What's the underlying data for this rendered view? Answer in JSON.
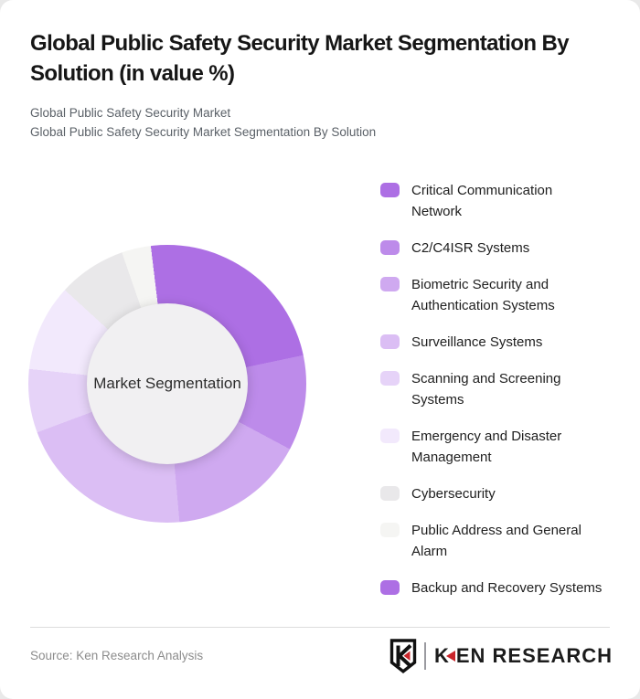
{
  "header": {
    "title": "Global Public Safety Security Market Segmentation By\nSolution (in value %)",
    "subtitle_line1": "Global Public Safety Security Market",
    "subtitle_line2": "Global Public Safety Security Market Segmentation By Solution"
  },
  "chart_data": {
    "type": "pie",
    "variant": "donut",
    "title": "Global Public Safety Security Market Segmentation By Solution (in value %)",
    "center_label": "Market Segmentation",
    "unit": "value %",
    "start_angle_deg": 0,
    "direction": "clockwise",
    "legend_position": "right",
    "hole_color": "#f1f0f2",
    "segments": [
      {
        "label": "Critical Communication\nNetwork",
        "value": 21.7,
        "color": "#ad6fe4"
      },
      {
        "label": "C2/C4ISR Systems",
        "value": 11.1,
        "color": "#bd8bea"
      },
      {
        "label": "Biometric Security and\nAuthentication Systems",
        "value": 15.8,
        "color": "#cfa9f0"
      },
      {
        "label": "Surveillance Systems",
        "value": 20.7,
        "color": "#dbbef4"
      },
      {
        "label": "Scanning and Screening\nSystems",
        "value": 7.4,
        "color": "#e6d3f8"
      },
      {
        "label": "Emergency and Disaster\nManagement",
        "value": 10.1,
        "color": "#f2e9fc"
      },
      {
        "label": "Cybersecurity",
        "value": 7.9,
        "color": "#e9e8ea"
      },
      {
        "label": "Public Address and General\nAlarm",
        "value": 3.4,
        "color": "#f5f5f3"
      },
      {
        "label": "Backup and Recovery Systems",
        "value": 1.9,
        "color": "#ad6fe4"
      }
    ]
  },
  "footer": {
    "source": "Source: Ken Research Analysis",
    "logo_k": "K",
    "logo_rest": "EN RESEARCH",
    "logo_accent": "#c9252b"
  }
}
